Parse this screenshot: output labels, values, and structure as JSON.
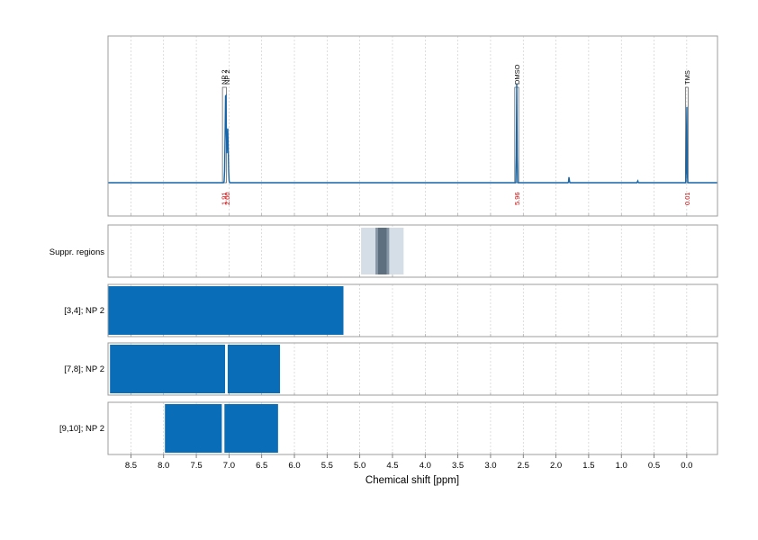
{
  "chart_data": {
    "type": "line",
    "xlabel": "Chemical shift [ppm]",
    "xlim": [
      8.85,
      -0.47
    ],
    "x_ticks": [
      "8.5",
      "8.0",
      "7.5",
      "7.0",
      "6.5",
      "6.0",
      "5.5",
      "5.0",
      "4.5",
      "4.0",
      "3.5",
      "3.0",
      "2.5",
      "2.0",
      "1.5",
      "1.0",
      "0.5",
      "0.0"
    ],
    "x_tick_values": [
      8.5,
      8.0,
      7.5,
      7.0,
      6.5,
      6.0,
      5.5,
      5.0,
      4.5,
      4.0,
      3.5,
      3.0,
      2.5,
      2.0,
      1.5,
      1.0,
      0.5,
      0.0
    ],
    "grid": true,
    "colors": {
      "spectrum": "#1565a8",
      "bar": "#0a6db8",
      "integral_label": "#cc0000",
      "suppr_light": "#d5dde6",
      "suppr_mid": "#8595a5",
      "suppr_dark": "#5e6f80"
    },
    "spectrum": {
      "peaks": [
        {
          "ppm": 7.05,
          "height": 0.95,
          "label": "NP 2"
        },
        {
          "ppm": 7.02,
          "height": 0.55,
          "label": "NP 2"
        },
        {
          "ppm": 2.6,
          "height": 1.0,
          "label": "DMSO"
        },
        {
          "ppm": 0.0,
          "height": 0.85,
          "label": "TMS"
        },
        {
          "ppm": 1.8,
          "height": 0.06,
          "label": ""
        },
        {
          "ppm": 0.75,
          "height": 0.02,
          "label": ""
        }
      ],
      "annotations": [
        {
          "ppm": 7.08,
          "text": "NP 2"
        },
        {
          "ppm": 7.03,
          "text": "NP 2"
        },
        {
          "ppm": 2.6,
          "text": "DMSO"
        },
        {
          "ppm": 0.0,
          "text": "TMS"
        }
      ],
      "integrals": [
        {
          "ppm": 7.08,
          "text": "1.91"
        },
        {
          "ppm": 7.03,
          "text": "2.00"
        },
        {
          "ppm": 2.6,
          "text": "5.96"
        },
        {
          "ppm": 0.0,
          "text": "0.01"
        }
      ]
    },
    "suppression_regions": {
      "label": "Suppr. regions",
      "bands": [
        {
          "from": 4.98,
          "to": 4.33,
          "level": "light"
        },
        {
          "from": 4.76,
          "to": 4.55,
          "level": "mid"
        },
        {
          "from": 4.72,
          "to": 4.59,
          "level": "dark"
        }
      ]
    },
    "bar_rows": [
      {
        "label": "[3,4]; NP 2",
        "segments": [
          [
            8.85,
            5.25
          ]
        ]
      },
      {
        "label": "[7,8]; NP 2",
        "segments": [
          [
            8.82,
            7.06
          ],
          [
            7.02,
            6.22
          ]
        ]
      },
      {
        "label": "[9,10]; NP 2",
        "segments": [
          [
            7.98,
            7.11
          ],
          [
            7.07,
            6.25
          ]
        ]
      }
    ]
  }
}
